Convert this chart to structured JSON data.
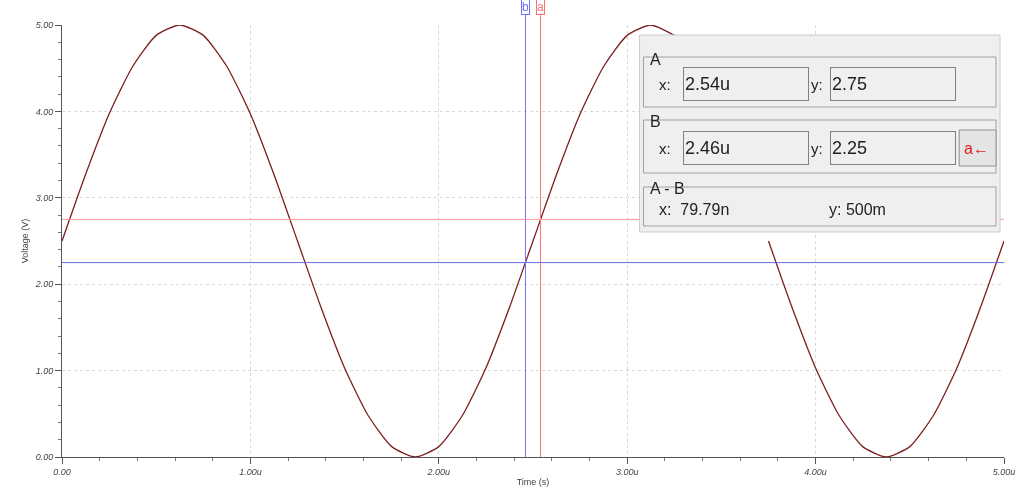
{
  "chart_data": {
    "type": "line",
    "xlabel": "Time (s)",
    "ylabel": "Voltage (V)",
    "x": [
      0,
      0.125,
      0.25,
      0.375,
      0.5,
      0.625,
      0.75,
      0.875,
      1.0,
      1.125,
      1.25,
      1.375,
      1.5,
      1.625,
      1.75,
      1.875,
      2.0,
      2.125,
      2.25,
      2.375,
      2.5,
      2.625,
      2.75,
      2.875,
      3.0,
      3.125,
      3.25,
      3.375,
      3.5,
      3.625,
      3.75,
      3.875,
      4.0,
      4.125,
      4.25,
      4.375,
      4.5,
      4.625,
      4.75,
      4.875,
      5.0
    ],
    "series": [
      {
        "color": "#7b1f1f",
        "values": [
          2.5,
          3.27,
          3.97,
          4.52,
          4.88,
          5.0,
          4.88,
          4.52,
          3.97,
          3.27,
          2.5,
          1.73,
          1.03,
          0.48,
          0.12,
          0.0,
          0.12,
          0.48,
          1.03,
          1.73,
          2.5,
          3.27,
          3.97,
          4.52,
          4.88,
          5.0,
          4.88,
          null,
          null,
          null,
          2.5,
          1.73,
          1.03,
          0.48,
          0.12,
          0.0,
          0.12,
          0.48,
          1.03,
          1.73,
          2.5
        ]
      }
    ],
    "xlim": [
      0,
      5
    ],
    "ylim": [
      0,
      5
    ],
    "xticks": [
      {
        "value": 0,
        "label": "0.00"
      },
      {
        "value": 1,
        "label": "1.00u"
      },
      {
        "value": 2,
        "label": "2.00u"
      },
      {
        "value": 3,
        "label": "3.00u"
      },
      {
        "value": 4,
        "label": "4.00u"
      },
      {
        "value": 5,
        "label": "5.00u"
      }
    ],
    "yticks": [
      {
        "value": 0,
        "label": "0.00"
      },
      {
        "value": 1,
        "label": "1.00"
      },
      {
        "value": 2,
        "label": "2.00"
      },
      {
        "value": 3,
        "label": "3.00"
      },
      {
        "value": 4,
        "label": "4.00"
      },
      {
        "value": 5,
        "label": "5.00"
      }
    ],
    "grid": true,
    "legend": false,
    "marker": "none",
    "line_style": "solid",
    "ref_lines": [
      {
        "axis": "x",
        "value": 2.46,
        "label": "b",
        "color": "#7070ff"
      },
      {
        "axis": "x",
        "value": 2.54,
        "label": "a",
        "color": "#ff7070"
      },
      {
        "axis": "y",
        "value": 2.75,
        "color": "#ff9a9a"
      },
      {
        "axis": "y",
        "value": 2.25,
        "color": "#6a6ae0"
      }
    ],
    "annotations": [
      "A",
      "x:",
      "2.54u",
      "y:",
      "2.75",
      "B",
      "x:",
      "2.46u",
      "y:",
      "2.25",
      "a←",
      "A - B",
      "x:  79.79n",
      "y: 500m"
    ]
  }
}
